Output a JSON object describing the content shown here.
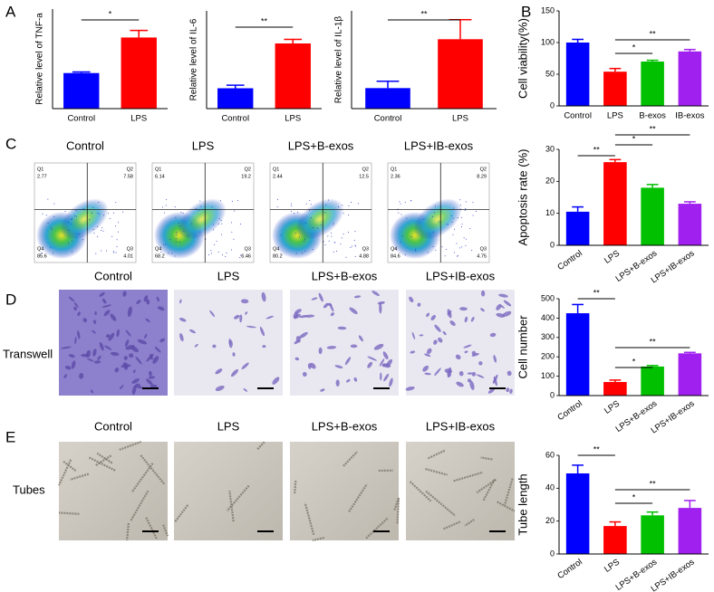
{
  "panels": [
    "A",
    "B",
    "C",
    "D",
    "E"
  ],
  "chart_data": [
    {
      "type": "bar",
      "y_label": "Relative  level of TNF-a",
      "categories": [
        "Control",
        "LPS"
      ],
      "values": [
        1,
        2
      ],
      "errors": [
        0.03,
        0.2
      ],
      "colors": [
        "#0000ff",
        "#ff0000"
      ],
      "ylim": [
        0,
        2.8
      ],
      "significance": [
        {
          "between": [
            "Control",
            "LPS"
          ],
          "label": "*"
        }
      ]
    },
    {
      "type": "bar",
      "y_label": "Relative  level of IL-6",
      "categories": [
        "Control",
        "LPS"
      ],
      "values": [
        1,
        3.2
      ],
      "errors": [
        0.15,
        0.2
      ],
      "colors": [
        "#0000ff",
        "#ff0000"
      ],
      "ylim": [
        0,
        4.8
      ],
      "significance": [
        {
          "between": [
            "Control",
            "LPS"
          ],
          "label": "**"
        }
      ]
    },
    {
      "type": "bar",
      "y_label": "Relative  level of IL-1β",
      "categories": [
        "Control",
        "LPS"
      ],
      "values": [
        1.05,
        3.55
      ],
      "errors": [
        0.35,
        1
      ],
      "colors": [
        "#0000ff",
        "#ff0000"
      ],
      "ylim": [
        0,
        5
      ],
      "significance": [
        {
          "between": [
            "Control",
            "LPS"
          ],
          "label": "**"
        }
      ]
    },
    {
      "type": "bar",
      "y_label": "Cell viability(%)",
      "categories": [
        "Control",
        "LPS",
        "B-exos",
        "IB-exos"
      ],
      "values": [
        100,
        54,
        70,
        86
      ],
      "errors": [
        5,
        5,
        2,
        3
      ],
      "colors": [
        "#0000ff",
        "#ff0000",
        "#00c000",
        "#a020f0"
      ],
      "ylim": [
        0,
        150
      ],
      "yticks": [
        0,
        50,
        100,
        150
      ],
      "significance": [
        {
          "between": [
            "LPS",
            "IB-exos"
          ],
          "label": "**"
        },
        {
          "between": [
            "LPS",
            "B-exos"
          ],
          "label": "*"
        }
      ]
    },
    {
      "type": "bar",
      "y_label": "Apoptosis rate (%)",
      "categories": [
        "Control",
        "LPS",
        "LPS+B-exos",
        "LPS+IB-exos"
      ],
      "values": [
        10.5,
        26,
        18,
        13
      ],
      "errors": [
        1.5,
        0.8,
        1,
        0.6
      ],
      "colors": [
        "#0000ff",
        "#ff0000",
        "#00c000",
        "#a020f0"
      ],
      "ylim": [
        0,
        30
      ],
      "yticks": [
        0,
        10,
        20,
        30
      ],
      "significance": [
        {
          "between": [
            "Control",
            "LPS"
          ],
          "label": "**"
        },
        {
          "between": [
            "LPS",
            "LPS+B-exos"
          ],
          "label": "*"
        },
        {
          "between": [
            "LPS",
            "LPS+IB-exos"
          ],
          "label": "**"
        }
      ]
    },
    {
      "type": "bar",
      "y_label": "Cell number",
      "categories": [
        "Control",
        "LPS",
        "LPS+B-exos",
        "LPS+IB-exos"
      ],
      "values": [
        425,
        70,
        150,
        218
      ],
      "errors": [
        45,
        10,
        5,
        5
      ],
      "colors": [
        "#0000ff",
        "#ff0000",
        "#00c000",
        "#a020f0"
      ],
      "ylim": [
        0,
        500
      ],
      "yticks": [
        0,
        100,
        200,
        300,
        400,
        500
      ],
      "significance": [
        {
          "between": [
            "Control",
            "LPS"
          ],
          "label": "**"
        },
        {
          "between": [
            "LPS",
            "LPS+B-exos"
          ],
          "label": "*"
        },
        {
          "between": [
            "LPS",
            "LPS+IB-exos"
          ],
          "label": "**"
        }
      ]
    },
    {
      "type": "bar",
      "y_label": "Tube length",
      "categories": [
        "Control",
        "LPS",
        "LPS+B-exos",
        "LPS+IB-exos"
      ],
      "values": [
        49,
        17,
        23.5,
        28
      ],
      "errors": [
        5,
        2.5,
        2,
        4.5
      ],
      "colors": [
        "#0000ff",
        "#ff0000",
        "#00c000",
        "#a020f0"
      ],
      "ylim": [
        0,
        60
      ],
      "yticks": [
        0,
        20,
        40,
        60
      ],
      "significance": [
        {
          "between": [
            "Control",
            "LPS"
          ],
          "label": "**"
        },
        {
          "between": [
            "LPS",
            "LPS+B-exos"
          ],
          "label": "*"
        },
        {
          "between": [
            "LPS",
            "LPS+IB-exos"
          ],
          "label": "**"
        }
      ]
    }
  ],
  "flow_cytometry": {
    "titles": [
      "Control",
      "LPS",
      "LPS+B-exos",
      "LPS+IB-exos"
    ],
    "plots": [
      {
        "quadrants": [
          {
            "name": "Q1",
            "value": 2.77
          },
          {
            "name": "Q2",
            "value": 7.58
          },
          {
            "name": "Q4",
            "value": 85.6
          },
          {
            "name": "Q3",
            "value": 4.01
          }
        ]
      },
      {
        "quadrants": [
          {
            "name": "Q1",
            "value": 6.14
          },
          {
            "name": "Q2",
            "value": 19.2
          },
          {
            "name": "Q4",
            "value": 68.2
          },
          {
            "name": "Q3",
            "value": 6.46
          }
        ]
      },
      {
        "quadrants": [
          {
            "name": "Q1",
            "value": 2.44
          },
          {
            "name": "Q2",
            "value": 12.5
          },
          {
            "name": "Q4",
            "value": 80.2
          },
          {
            "name": "Q3",
            "value": 4.88
          }
        ]
      },
      {
        "quadrants": [
          {
            "name": "Q1",
            "value": 2.36
          },
          {
            "name": "Q2",
            "value": 8.29
          },
          {
            "name": "Q4",
            "value": 84.6
          },
          {
            "name": "Q3",
            "value": 4.75
          }
        ]
      }
    ]
  },
  "transwell": {
    "row_label": "Transwell",
    "titles": [
      "Control",
      "LPS",
      "LPS+B-exos",
      "LPS+IB-exos"
    ]
  },
  "tubes": {
    "row_label": "Tubes",
    "titles": [
      "Control",
      "LPS",
      "LPS+B-exos",
      "LPS+IB-exos"
    ]
  }
}
